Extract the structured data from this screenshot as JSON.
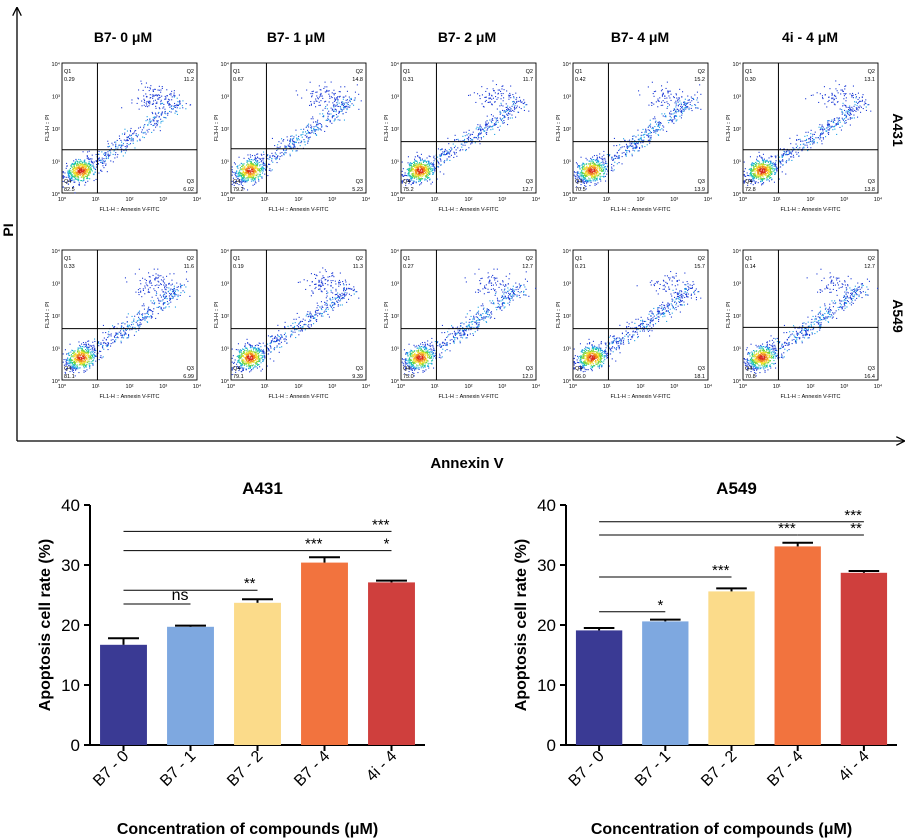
{
  "flow": {
    "y_axis_label": "PI",
    "x_axis_label": "Annexin  V",
    "column_titles": [
      "B7- 0 μM",
      "B7- 1 μM",
      "B7- 2 μM",
      "B7- 4 μM",
      "4i - 4 μM"
    ],
    "row_labels": [
      "A431",
      "A549"
    ],
    "panel_x_label": "FL1-H :: Annexin V-FITC",
    "panel_y_label": "FL3-H :: PI",
    "y_ticks": [
      "10⁴",
      "10³",
      "10²",
      "10¹",
      "10⁰"
    ],
    "x_ticks": [
      "10⁰",
      "10¹",
      "10²",
      "10³",
      "10⁴"
    ],
    "gates": [
      [
        {
          "x": 1.05,
          "y": 1.33
        },
        {
          "x": 1.05,
          "y": 1.36
        },
        {
          "x": 1.05,
          "y": 1.58
        },
        {
          "x": 1.05,
          "y": 1.58
        },
        {
          "x": 1.05,
          "y": 1.33
        }
      ],
      [
        {
          "x": 1.05,
          "y": 1.58
        },
        {
          "x": 1.05,
          "y": 1.58
        },
        {
          "x": 1.05,
          "y": 1.58
        },
        {
          "x": 1.05,
          "y": 1.58
        },
        {
          "x": 1.05,
          "y": 1.62
        }
      ]
    ],
    "quadrants": [
      [
        {
          "Q1": "0.29",
          "Q2": "11.2",
          "Q3": "6.02",
          "Q4": "82.5"
        },
        {
          "Q1": "0.67",
          "Q2": "14.8",
          "Q3": "5.23",
          "Q4": "79.2"
        },
        {
          "Q1": "0.31",
          "Q2": "11.7",
          "Q3": "12.7",
          "Q4": "75.2"
        },
        {
          "Q1": "0.42",
          "Q2": "15.2",
          "Q3": "13.9",
          "Q4": "70.5"
        },
        {
          "Q1": "0.30",
          "Q2": "13.1",
          "Q3": "13.8",
          "Q4": "72.8"
        }
      ],
      [
        {
          "Q1": "0.33",
          "Q2": "11.6",
          "Q3": "6.99",
          "Q4": "81.1"
        },
        {
          "Q1": "0.19",
          "Q2": "11.3",
          "Q3": "9.39",
          "Q4": "79.1"
        },
        {
          "Q1": "0.27",
          "Q2": "12.7",
          "Q3": "12.0",
          "Q4": "75.0"
        },
        {
          "Q1": "0.21",
          "Q2": "15.7",
          "Q3": "18.1",
          "Q4": "66.0"
        },
        {
          "Q1": "0.14",
          "Q2": "12.7",
          "Q3": "16.4",
          "Q4": "70.8"
        }
      ]
    ]
  },
  "chart_data": [
    {
      "type": "bar",
      "title": "A431",
      "xlabel": "Concentration of compounds (μM)",
      "ylabel": "Apoptosis cell rate (%)",
      "ylim": [
        0,
        40
      ],
      "yticks": [
        0,
        10,
        20,
        30,
        40
      ],
      "categories": [
        "B7 - 0",
        "B7 - 1",
        "B7 - 2",
        "B7 - 4",
        "4i - 4"
      ],
      "values": [
        16.7,
        19.7,
        23.7,
        30.4,
        27.1
      ],
      "errors": [
        1.1,
        0.2,
        0.6,
        0.9,
        0.3
      ],
      "colors": [
        "#3a3a94",
        "#7ea8e0",
        "#fbdb8a",
        "#f2733e",
        "#cf3f3d"
      ],
      "significance": [
        {
          "from": 0,
          "to": 1,
          "label": "ns",
          "level": 23.5
        },
        {
          "from": 0,
          "to": 2,
          "label": "**",
          "level": 25.8
        },
        {
          "from": 3,
          "to": 4,
          "label": "*",
          "level": 32.4
        },
        {
          "from": 0,
          "to": 3,
          "label": "***",
          "level": 32.4
        },
        {
          "from": 0,
          "to": 4,
          "label": "***",
          "level": 35.6
        }
      ]
    },
    {
      "type": "bar",
      "title": "A549",
      "xlabel": "Concentration of compounds (μM)",
      "ylabel": "Apoptosis cell rate (%)",
      "ylim": [
        0,
        40
      ],
      "yticks": [
        0,
        10,
        20,
        30,
        40
      ],
      "categories": [
        "B7 - 0",
        "B7 - 1",
        "B7 - 2",
        "B7 - 4",
        "4i - 4"
      ],
      "values": [
        19.1,
        20.6,
        25.6,
        33.1,
        28.7
      ],
      "errors": [
        0.4,
        0.3,
        0.5,
        0.6,
        0.3
      ],
      "colors": [
        "#3a3a94",
        "#7ea8e0",
        "#fbdb8a",
        "#f2733e",
        "#cf3f3d"
      ],
      "significance": [
        {
          "from": 0,
          "to": 1,
          "label": "*",
          "level": 22.2
        },
        {
          "from": 0,
          "to": 2,
          "label": "***",
          "level": 28.0
        },
        {
          "from": 3,
          "to": 4,
          "label": "**",
          "level": 35.0
        },
        {
          "from": 0,
          "to": 3,
          "label": "***",
          "level": 35.0
        },
        {
          "from": 0,
          "to": 4,
          "label": "***",
          "level": 37.2
        }
      ]
    }
  ]
}
